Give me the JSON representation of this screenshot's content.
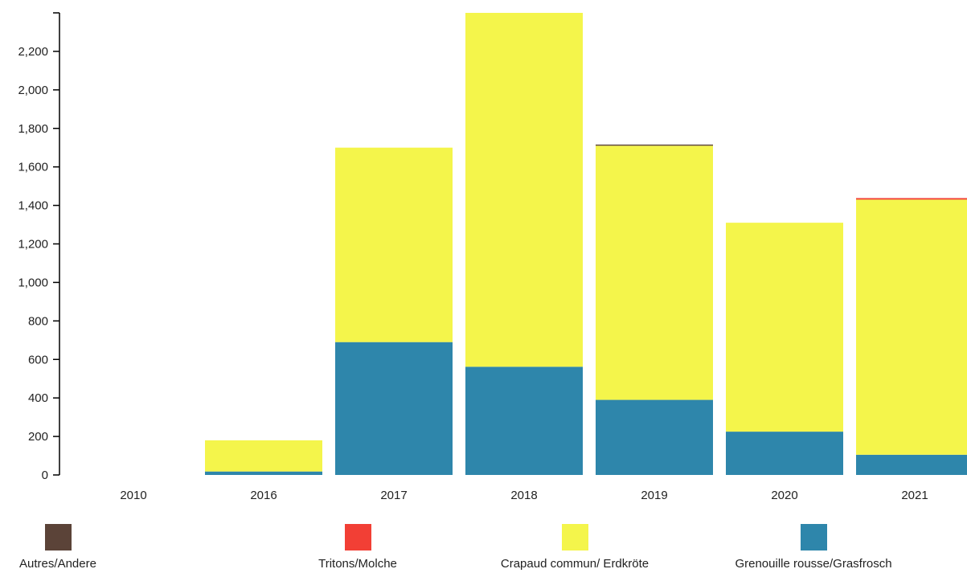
{
  "chart_data": {
    "type": "bar",
    "stacked": true,
    "title": "",
    "xlabel": "",
    "ylabel": "",
    "ylim": [
      0,
      2400
    ],
    "yticks": [
      0,
      200,
      400,
      600,
      800,
      1000,
      1200,
      1400,
      1600,
      1800,
      2000,
      2200
    ],
    "ytick_labels": [
      "0",
      "200",
      "400",
      "600",
      "800",
      "1,000",
      "1,200",
      "1,400",
      "1,600",
      "1,800",
      "2,000",
      "2,200"
    ],
    "grid": false,
    "categories": [
      "2010",
      "2016",
      "2017",
      "2018",
      "2019",
      "2020",
      "2021"
    ],
    "series": [
      {
        "name": "Grenouille rousse/Grasfrosch",
        "color": "#2e86ab",
        "values": [
          0,
          18,
          690,
          562,
          390,
          225,
          105
        ]
      },
      {
        "name": "Crapaud commun/ Erdkröte",
        "color": "#f4f54b",
        "values": [
          0,
          162,
          1010,
          1838,
          1320,
          1085,
          1325
        ]
      },
      {
        "name": "Tritons/Molche",
        "color": "#f23f35",
        "values": [
          0,
          0,
          0,
          0,
          0,
          0,
          8
        ]
      },
      {
        "name": "Autres/Andere",
        "color": "#5b4338",
        "values": [
          0,
          0,
          0,
          0,
          6,
          0,
          0
        ]
      }
    ],
    "legend": {
      "position": "bottom",
      "items": [
        {
          "name": "Autres/Andere",
          "color": "#5b4338"
        },
        {
          "name": "Tritons/Molche",
          "color": "#f23f35"
        },
        {
          "name": "Crapaud commun/ Erdkröte",
          "color": "#f4f54b"
        },
        {
          "name": "Grenouille rousse/Grasfrosch",
          "color": "#2e86ab"
        }
      ]
    }
  }
}
